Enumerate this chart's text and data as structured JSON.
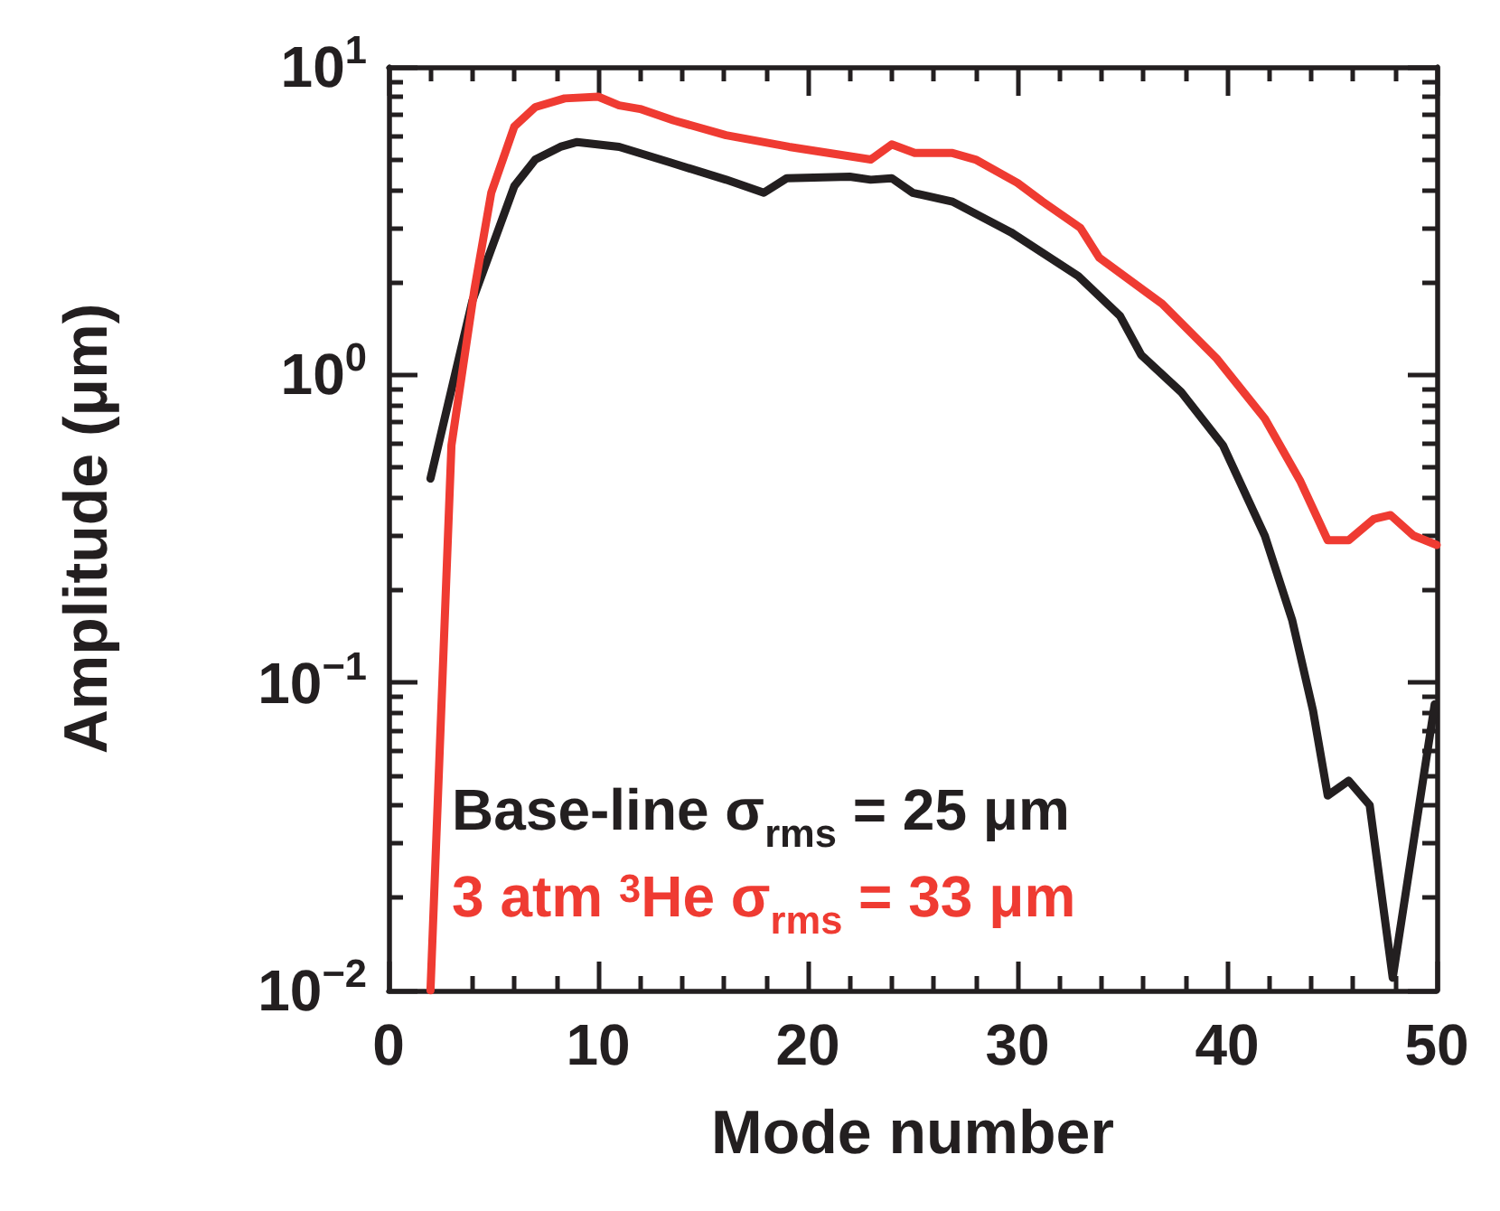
{
  "chart_data": {
    "type": "line",
    "xlabel": "Mode number",
    "ylabel": "Amplitude (μm)",
    "log": "y",
    "xlim": [
      0,
      50
    ],
    "ylim": [
      0.01,
      10
    ],
    "xticks": [
      0,
      {
        "value": 2,
        "label": null
      },
      {
        "value": 4,
        "label": null
      },
      {
        "value": 6,
        "label": null
      },
      {
        "value": 8,
        "label": null
      },
      10,
      {
        "value": 12,
        "label": null
      },
      {
        "value": 14,
        "label": null
      },
      {
        "value": 16,
        "label": null
      },
      {
        "value": 18,
        "label": null
      },
      20,
      {
        "value": 22,
        "label": null
      },
      {
        "value": 24,
        "label": null
      },
      {
        "value": 26,
        "label": null
      },
      {
        "value": 28,
        "label": null
      },
      30,
      {
        "value": 32,
        "label": null
      },
      {
        "value": 34,
        "label": null
      },
      {
        "value": 36,
        "label": null
      },
      {
        "value": 38,
        "label": null
      },
      40,
      {
        "value": 42,
        "label": null
      },
      {
        "value": 44,
        "label": null
      },
      {
        "value": 46,
        "label": null
      },
      {
        "value": 48,
        "label": null
      },
      50
    ],
    "yticks": [
      {
        "value": 0.01,
        "label": "10$^{−2}$"
      },
      {
        "value": 0.02,
        "label": null
      },
      {
        "value": 0.03,
        "label": null
      },
      {
        "value": 0.04,
        "label": null
      },
      {
        "value": 0.05,
        "label": null
      },
      {
        "value": 0.06,
        "label": null
      },
      {
        "value": 0.07,
        "label": null
      },
      {
        "value": 0.08,
        "label": null
      },
      {
        "value": 0.09,
        "label": null
      },
      {
        "value": 0.1,
        "label": "10$^{−1}$"
      },
      {
        "value": 0.2,
        "label": null
      },
      {
        "value": 0.3,
        "label": null
      },
      {
        "value": 0.4,
        "label": null
      },
      {
        "value": 0.5,
        "label": null
      },
      {
        "value": 0.6,
        "label": null
      },
      {
        "value": 0.7,
        "label": null
      },
      {
        "value": 0.8,
        "label": null
      },
      {
        "value": 0.9,
        "label": null
      },
      {
        "value": 1,
        "label": "10$^{0}$"
      },
      {
        "value": 2,
        "label": null
      },
      {
        "value": 3,
        "label": null
      },
      {
        "value": 4,
        "label": null
      },
      {
        "value": 5,
        "label": null
      },
      {
        "value": 6,
        "label": null
      },
      {
        "value": 7,
        "label": null
      },
      {
        "value": 8,
        "label": null
      },
      {
        "value": 9,
        "label": null
      },
      {
        "value": 10,
        "label": "10$^{1}$"
      }
    ],
    "grid": false,
    "legend": false,
    "marker": "none",
    "line_style": "solid",
    "series": [
      {
        "name": "Base-line σ$_{rms}$ = 25 μm",
        "color": "#231f20",
        "x": [
          2,
          4,
          6,
          7,
          8.2,
          9,
          11,
          13.4,
          16.1,
          17.9,
          19,
          22,
          23,
          24,
          25,
          26.9,
          29.7,
          32.9,
          34.9,
          35.9,
          37.8,
          39.8,
          41.8,
          43.1,
          44.1,
          44.8,
          45.8,
          46.8,
          47.9,
          49.9
        ],
        "values": [
          0.46,
          1.74,
          4.1,
          5.0,
          5.5,
          5.7,
          5.5,
          4.9,
          4.3,
          3.9,
          4.35,
          4.4,
          4.3,
          4.35,
          3.9,
          3.65,
          2.9,
          2.09,
          1.55,
          1.16,
          0.88,
          0.59,
          0.3,
          0.16,
          0.081,
          0.043,
          0.048,
          0.04,
          0.011,
          0.085
        ]
      },
      {
        "name": "3 atm $^{3}$He σ$_{rms}$ = 33 μm",
        "color": "#ef3b32",
        "x": [
          2,
          3,
          4.1,
          4.9,
          6,
          7,
          8.4,
          10,
          11,
          12,
          13.6,
          16.1,
          19.1,
          21.4,
          23,
          24,
          25.1,
          26.9,
          28,
          30,
          31.2,
          33,
          33.9,
          36.9,
          39.5,
          41.8,
          43.5,
          44.8,
          45.8,
          47,
          47.8,
          48.9,
          50
        ],
        "values": [
          0.01,
          0.59,
          1.9,
          3.9,
          6.4,
          7.4,
          7.9,
          8.0,
          7.5,
          7.3,
          6.7,
          6.0,
          5.5,
          5.2,
          5.0,
          5.6,
          5.25,
          5.25,
          5.0,
          4.2,
          3.65,
          3.0,
          2.4,
          1.7,
          1.13,
          0.72,
          0.45,
          0.29,
          0.29,
          0.34,
          0.35,
          0.3,
          0.28
        ]
      }
    ]
  }
}
